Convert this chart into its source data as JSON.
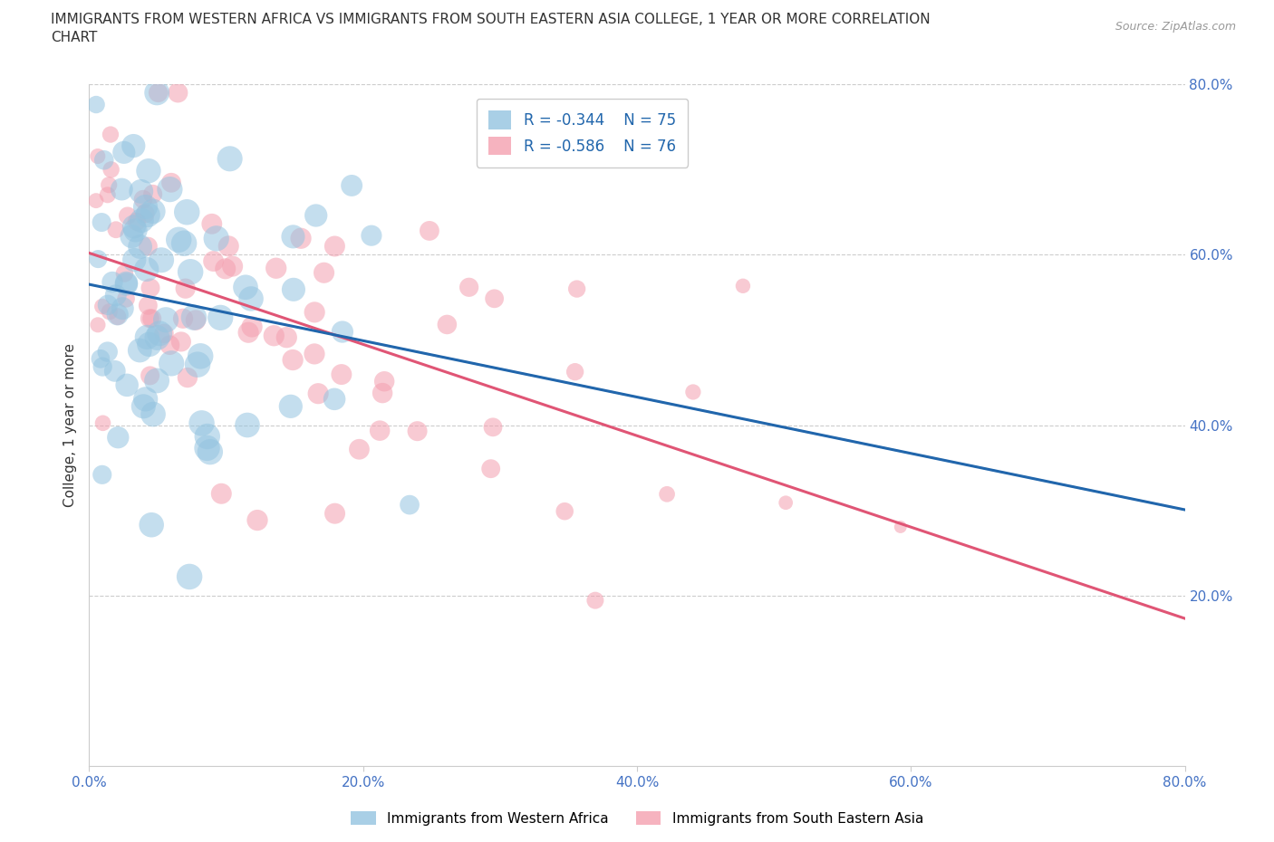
{
  "title_line1": "IMMIGRANTS FROM WESTERN AFRICA VS IMMIGRANTS FROM SOUTH EASTERN ASIA COLLEGE, 1 YEAR OR MORE CORRELATION",
  "title_line2": "CHART",
  "source": "Source: ZipAtlas.com",
  "ylabel": "College, 1 year or more",
  "xlim": [
    0.0,
    0.8
  ],
  "ylim": [
    0.0,
    0.8
  ],
  "xticks": [
    0.0,
    0.2,
    0.4,
    0.6,
    0.8
  ],
  "yticks": [
    0.2,
    0.4,
    0.6,
    0.8
  ],
  "xticklabels": [
    "0.0%",
    "20.0%",
    "40.0%",
    "60.0%",
    "80.0%"
  ],
  "yticklabels": [
    "20.0%",
    "40.0%",
    "60.0%",
    "80.0%"
  ],
  "blue_color": "#94c4e0",
  "pink_color": "#f4a0b0",
  "blue_line_color": "#2166ac",
  "pink_line_color": "#e05575",
  "dashed_line_color": "#93b8d8",
  "tick_color": "#4472c4",
  "legend_R1": "R = -0.344",
  "legend_N1": "N = 75",
  "legend_R2": "R = -0.586",
  "legend_N2": "N = 76",
  "R1": -0.344,
  "N1": 75,
  "R2": -0.586,
  "N2": 76,
  "grid_color": "#cccccc",
  "bg_color": "#ffffff",
  "text_color_dark": "#333333",
  "blue_label": "Immigrants from Western Africa",
  "pink_label": "Immigrants from South Eastern Asia",
  "title_fontsize": 11,
  "label_fontsize": 11,
  "tick_fontsize": 11
}
